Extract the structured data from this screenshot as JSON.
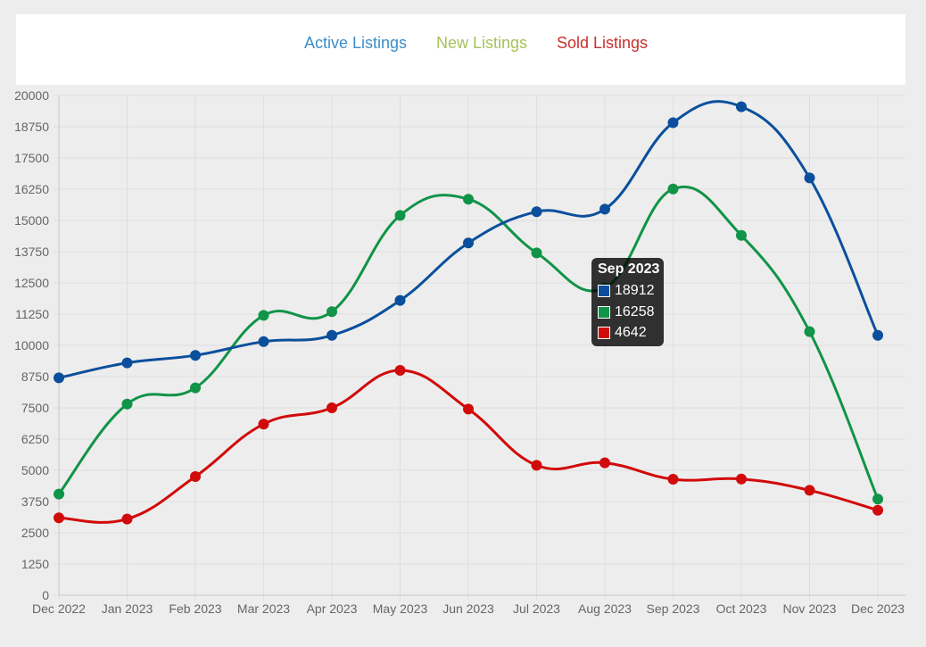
{
  "legend": [
    {
      "label": "Active Listings",
      "color": "#3c8dc9"
    },
    {
      "label": "New Listings",
      "color": "#a6c25b"
    },
    {
      "label": "Sold Listings",
      "color": "#c9302c"
    }
  ],
  "chart_data": {
    "type": "line",
    "x": [
      "Dec 2022",
      "Jan 2023",
      "Feb 2023",
      "Mar 2023",
      "Apr 2023",
      "May 2023",
      "Jun 2023",
      "Jul 2023",
      "Aug 2023",
      "Sep 2023",
      "Oct 2023",
      "Nov 2023",
      "Dec 2023"
    ],
    "y_ticks": [
      0,
      1250,
      2500,
      3750,
      5000,
      6250,
      7500,
      8750,
      10000,
      11250,
      12500,
      13750,
      15000,
      16250,
      17500,
      18750,
      20000
    ],
    "ylim": [
      0,
      20000
    ],
    "grid": true,
    "legend_position": "top",
    "series": [
      {
        "name": "Active Listings",
        "color": "#0b4f9c",
        "values": [
          8700,
          9300,
          9600,
          10150,
          10400,
          11800,
          14100,
          15350,
          15450,
          18912,
          19550,
          16700,
          10400
        ]
      },
      {
        "name": "New Listings",
        "color": "#109447",
        "values": [
          4050,
          7650,
          8300,
          11200,
          11350,
          15200,
          15850,
          13700,
          12300,
          16258,
          14400,
          10550,
          3850
        ]
      },
      {
        "name": "Sold Listings",
        "color": "#d10a0a",
        "values": [
          3100,
          3050,
          4750,
          6850,
          7500,
          9000,
          7450,
          5200,
          5300,
          4642,
          4650,
          4200,
          3400
        ]
      }
    ]
  },
  "tooltip": {
    "title": "Sep 2023",
    "rows": [
      {
        "value": "18912",
        "color": "#0b4f9c"
      },
      {
        "value": "16258",
        "color": "#109447"
      },
      {
        "value": "4642",
        "color": "#d10a0a"
      }
    ]
  }
}
